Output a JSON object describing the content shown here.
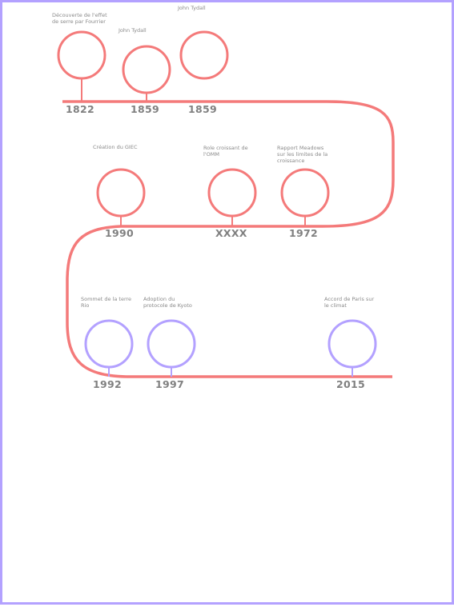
{
  "colors": {
    "track": "#f47a7a",
    "milestone_red": "#f47a7a",
    "milestone_purple": "#b3a1ff",
    "frame": "#b3a1ff",
    "text": "#808080"
  },
  "milestones": [
    {
      "year": "1822",
      "caption": "Découverte de l'effet\nde serre par Fourrier",
      "color": "red"
    },
    {
      "year": "1859",
      "caption": "John Tydall",
      "color": "red"
    },
    {
      "year": "1859",
      "caption": "John Tydall",
      "color": "red"
    },
    {
      "year": "1990",
      "caption": "Création du GIEC",
      "color": "red"
    },
    {
      "year": "XXXX",
      "caption": "Role croissant de\nl'OMM",
      "color": "red"
    },
    {
      "year": "1972",
      "caption": "Rapport Meadows\nsur les limites de la\ncroissance",
      "color": "red"
    },
    {
      "year": "1992",
      "caption": "Sommet de la terre\nRio",
      "color": "purple"
    },
    {
      "year": "1997",
      "caption": "Adoption du\nprotocole de Kyoto",
      "color": "purple"
    },
    {
      "year": "2015",
      "caption": "Accord de Paris sur\nle climat",
      "color": "purple"
    }
  ]
}
